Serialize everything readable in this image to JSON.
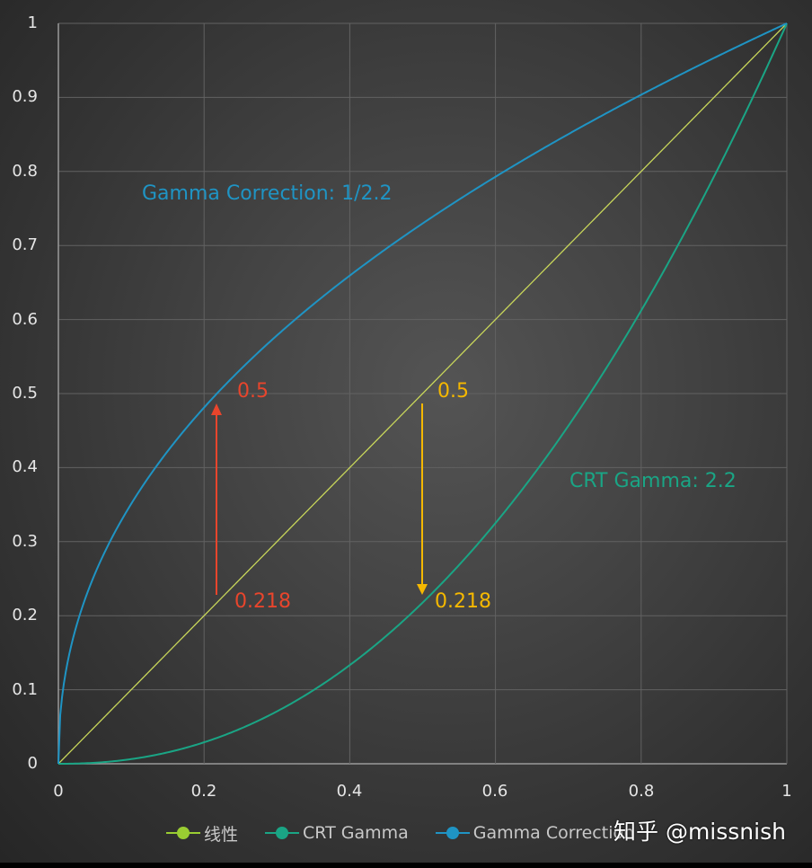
{
  "chart_data": {
    "type": "line",
    "title": "",
    "xlabel": "",
    "ylabel": "",
    "xlim": [
      0,
      1
    ],
    "ylim": [
      0,
      1
    ],
    "grid": true,
    "legend_position": "bottom",
    "x_ticks": [
      "0",
      "0.2",
      "0.4",
      "0.6",
      "0.8",
      "1"
    ],
    "y_ticks": [
      "0",
      "0.1",
      "0.2",
      "0.3",
      "0.4",
      "0.5",
      "0.6",
      "0.7",
      "0.8",
      "0.9",
      "1"
    ],
    "x": [
      0,
      0.05,
      0.1,
      0.15,
      0.2,
      0.25,
      0.3,
      0.35,
      0.4,
      0.45,
      0.5,
      0.55,
      0.6,
      0.65,
      0.7,
      0.75,
      0.8,
      0.85,
      0.9,
      0.95,
      1
    ],
    "series": [
      {
        "name": "线性",
        "color": "#9acd32",
        "values": [
          0,
          0.05,
          0.1,
          0.15,
          0.2,
          0.25,
          0.3,
          0.35,
          0.4,
          0.45,
          0.5,
          0.55,
          0.6,
          0.65,
          0.7,
          0.75,
          0.8,
          0.85,
          0.9,
          0.95,
          1
        ]
      },
      {
        "name": "CRT Gamma",
        "color": "#1aa585",
        "values": [
          0,
          0.0014,
          0.0063,
          0.0154,
          0.029,
          0.0474,
          0.0707,
          0.0992,
          0.1332,
          0.1726,
          0.2176,
          0.2683,
          0.325,
          0.3877,
          0.4562,
          0.5309,
          0.6121,
          0.6994,
          0.7931,
          0.8933,
          1
        ]
      },
      {
        "name": "Gamma Correction",
        "color": "#1f94c4",
        "values": [
          0,
          0.2563,
          0.3511,
          0.4219,
          0.4811,
          0.5325,
          0.5785,
          0.6204,
          0.6593,
          0.6955,
          0.7297,
          0.762,
          0.7927,
          0.8222,
          0.8503,
          0.8774,
          0.9036,
          0.9288,
          0.9532,
          0.977,
          1
        ]
      }
    ],
    "annotations": [
      {
        "text": "Gamma Correction: 1/2.2",
        "color": "#1f94c4"
      },
      {
        "text": "CRT Gamma: 2.2",
        "color": "#1aa585"
      },
      {
        "text": "0.5",
        "color": "#e8452c",
        "arrow": "up",
        "from": [
          0.218,
          0.218
        ],
        "to": [
          0.218,
          0.5
        ]
      },
      {
        "text": "0.218",
        "color": "#e8452c"
      },
      {
        "text": "0.5",
        "color": "#f5b800",
        "arrow": "down",
        "from": [
          0.5,
          0.5
        ],
        "to": [
          0.5,
          0.218
        ]
      },
      {
        "text": "0.218",
        "color": "#f5b800"
      }
    ]
  },
  "axis": {
    "y_ticks": [
      "1",
      "0.9",
      "0.8",
      "0.7",
      "0.6",
      "0.5",
      "0.4",
      "0.3",
      "0.2",
      "0.1",
      "0"
    ],
    "x_ticks": [
      "0",
      "0.2",
      "0.4",
      "0.6",
      "0.8",
      "1"
    ]
  },
  "annotations": {
    "gamma_correction_label": "Gamma Correction: 1/2.2",
    "crt_gamma_label": "CRT Gamma: 2.2",
    "red_top": "0.5",
    "red_bottom": "0.218",
    "yellow_top": "0.5",
    "yellow_bottom": "0.218"
  },
  "legend": {
    "items": [
      {
        "label": "线性",
        "color": "#9acd32"
      },
      {
        "label": "CRT Gamma",
        "color": "#1aa585"
      },
      {
        "label": "Gamma Correction",
        "color": "#1f94c4"
      }
    ]
  },
  "watermark": "知乎 @missnish",
  "colors": {
    "linear": "#c8d65a",
    "crt": "#1aa585",
    "correction": "#1f94c4",
    "red_arrow": "#e8452c",
    "yellow_arrow": "#f5b800",
    "grid": "#6a6a6a"
  }
}
